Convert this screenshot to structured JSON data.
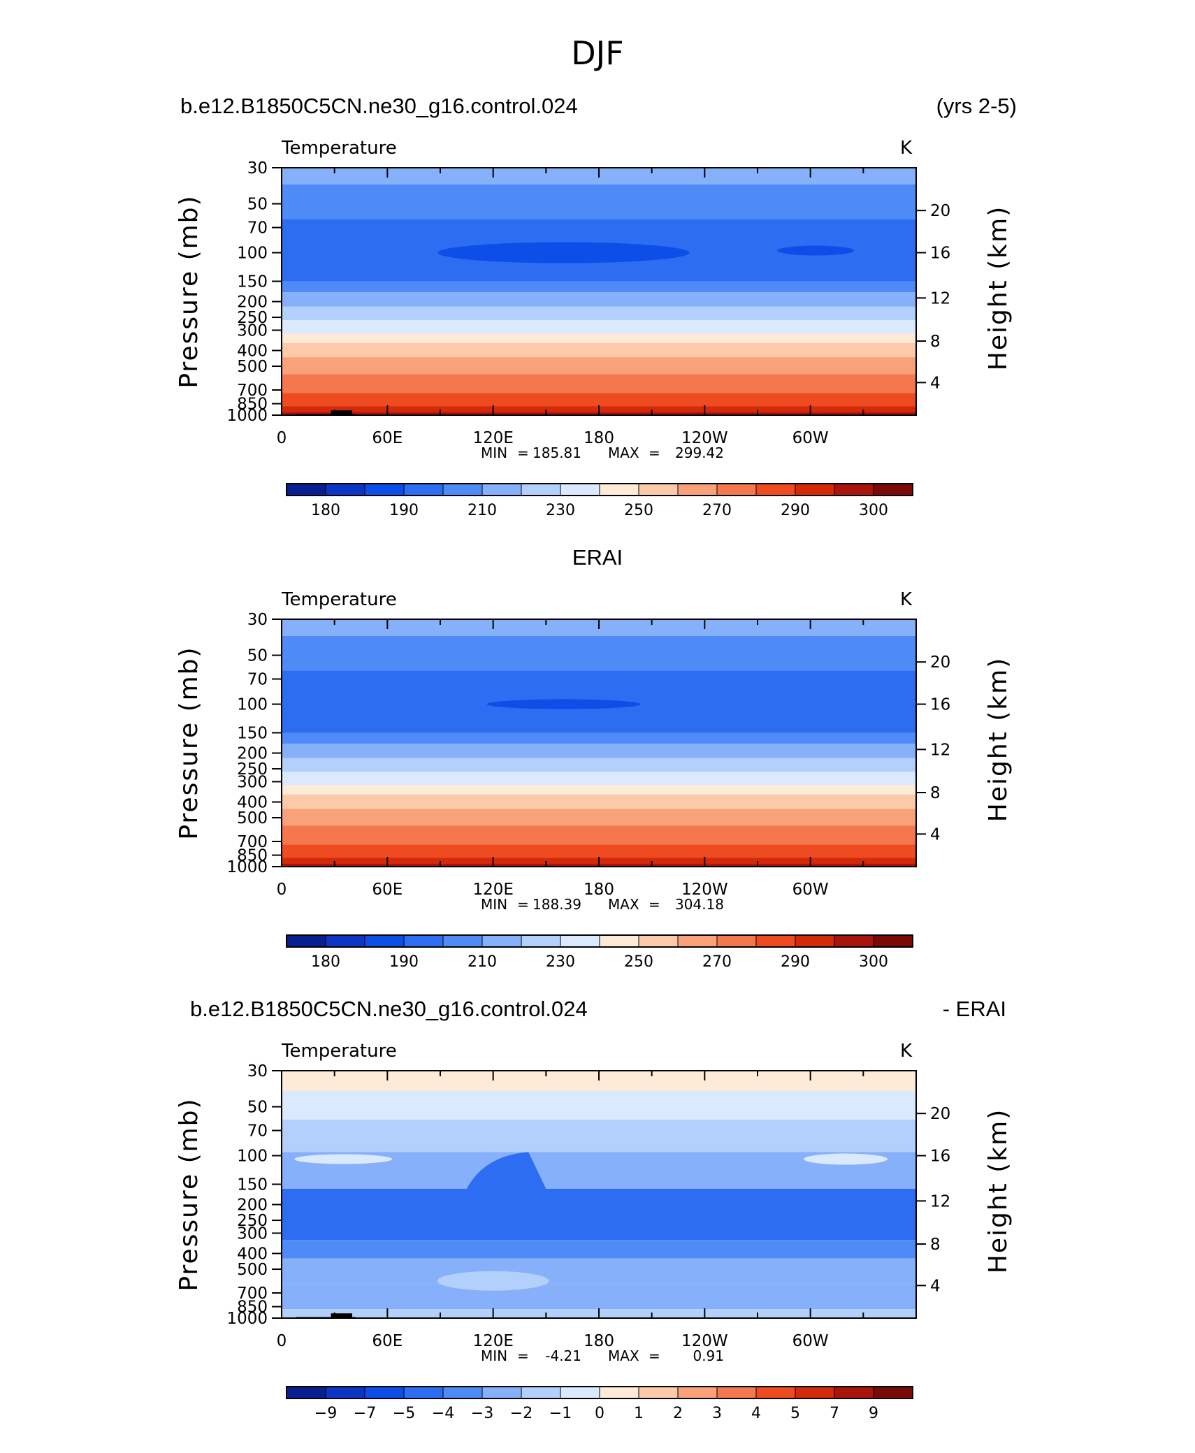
{
  "figure": {
    "title": "DJF"
  },
  "chart_data": [
    {
      "type": "heatmap",
      "case": "b.e12.B1850C5CN.ne30_g16.control.024",
      "years": "(yrs 2-5)",
      "variable": "Temperature",
      "units": "K",
      "ylabel": "Pressure (mb)",
      "ylabel_right": "Height (km)",
      "x_ticks": [
        "0",
        "60E",
        "120E",
        "180",
        "120W",
        "60W"
      ],
      "y_ticks": [
        "30",
        "50",
        "70",
        "100",
        "150",
        "200",
        "250",
        "300",
        "400",
        "500",
        "700",
        "850",
        "1000"
      ],
      "y_ticks_right": [
        "20",
        "16",
        "12",
        "8",
        "4"
      ],
      "ylim": [
        1000,
        30
      ],
      "xlim": [
        0,
        360
      ],
      "min_label": "MIN",
      "min": "185.81",
      "max_label": "MAX",
      "max": "299.42",
      "colorbar_labels": [
        "180",
        "190",
        "210",
        "230",
        "250",
        "270",
        "290",
        "300"
      ],
      "layers": [
        {
          "p": 30,
          "value": 215
        },
        {
          "p": 50,
          "value": 205
        },
        {
          "p": 70,
          "value": 200
        },
        {
          "p": 100,
          "value": 195
        },
        {
          "p": 150,
          "value": 205
        },
        {
          "p": 200,
          "value": 215
        },
        {
          "p": 250,
          "value": 225
        },
        {
          "p": 300,
          "value": 235
        },
        {
          "p": 400,
          "value": 245
        },
        {
          "p": 500,
          "value": 255
        },
        {
          "p": 700,
          "value": 265
        },
        {
          "p": 850,
          "value": 275
        },
        {
          "p": 1000,
          "value": 285
        }
      ]
    },
    {
      "type": "heatmap",
      "case": "ERAI",
      "variable": "Temperature",
      "units": "K",
      "ylabel": "Pressure (mb)",
      "ylabel_right": "Height (km)",
      "x_ticks": [
        "0",
        "60E",
        "120E",
        "180",
        "120W",
        "60W"
      ],
      "y_ticks": [
        "30",
        "50",
        "70",
        "100",
        "150",
        "200",
        "250",
        "300",
        "400",
        "500",
        "700",
        "850",
        "1000"
      ],
      "y_ticks_right": [
        "20",
        "16",
        "12",
        "8",
        "4"
      ],
      "ylim": [
        1000,
        30
      ],
      "xlim": [
        0,
        360
      ],
      "min_label": "MIN",
      "min": "188.39",
      "max_label": "MAX",
      "max": "304.18",
      "colorbar_labels": [
        "180",
        "190",
        "210",
        "230",
        "250",
        "270",
        "290",
        "300"
      ]
    },
    {
      "type": "heatmap",
      "case": "b.e12.B1850C5CN.ne30_g16.control.024",
      "case_suffix": "- ERAI",
      "variable": "Temperature",
      "units": "K",
      "ylabel": "Pressure (mb)",
      "ylabel_right": "Height (km)",
      "x_ticks": [
        "0",
        "60E",
        "120E",
        "180",
        "120W",
        "60W"
      ],
      "y_ticks": [
        "30",
        "50",
        "70",
        "100",
        "150",
        "200",
        "250",
        "300",
        "400",
        "500",
        "700",
        "850",
        "1000"
      ],
      "y_ticks_right": [
        "20",
        "16",
        "12",
        "8",
        "4"
      ],
      "ylim": [
        1000,
        30
      ],
      "xlim": [
        0,
        360
      ],
      "min_label": "MIN",
      "min": "-4.21",
      "max_label": "MAX",
      "max": "0.91",
      "colorbar_labels": [
        "-9",
        "-7",
        "-5",
        "-4",
        "-3",
        "-2",
        "-1",
        "0",
        "1",
        "2",
        "3",
        "4",
        "5",
        "7",
        "9"
      ]
    }
  ],
  "colors": {
    "palette": [
      "#0a1f8f",
      "#0b35c2",
      "#0d4ee8",
      "#2c6df2",
      "#4f8bf7",
      "#86b0fa",
      "#b3cffc",
      "#dbe9fe",
      "#fdebd8",
      "#fccaa8",
      "#f9a27a",
      "#f5774d",
      "#ef4b20",
      "#d42a0a",
      "#a8150a",
      "#7a0a08"
    ],
    "diff_palette": [
      "#0a1f8f",
      "#0b35c2",
      "#0d4ee8",
      "#2c6df2",
      "#4f8bf7",
      "#86b0fa",
      "#b3cffc",
      "#dbe9fe",
      "#fdebd8",
      "#fccaa8",
      "#f9a27a",
      "#f5774d",
      "#ef4b20",
      "#d42a0a",
      "#a8150a",
      "#7a0a08"
    ]
  }
}
